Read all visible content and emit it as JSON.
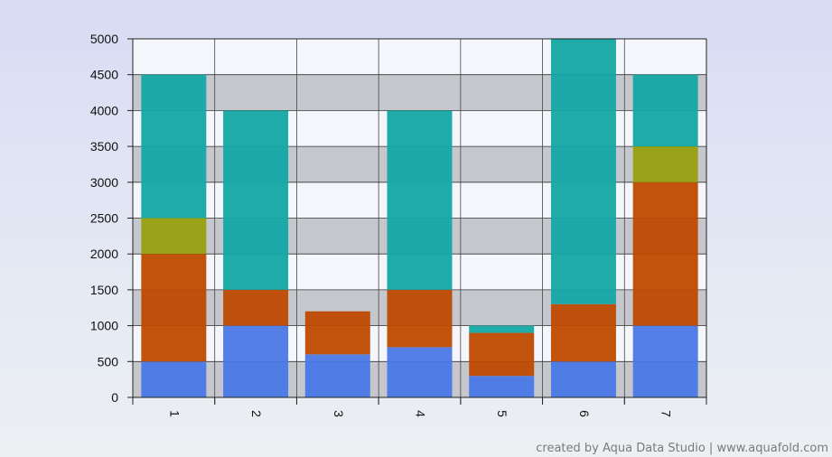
{
  "chart_data": {
    "type": "bar",
    "stacked": true,
    "categories": [
      "1",
      "2",
      "3",
      "4",
      "5",
      "6",
      "7"
    ],
    "series": [
      {
        "color": "#4a78e6",
        "values": [
          500,
          1000,
          600,
          700,
          300,
          500,
          1000
        ]
      },
      {
        "color": "#bf4a00",
        "values": [
          1500,
          500,
          600,
          800,
          600,
          800,
          2000
        ]
      },
      {
        "color": "#98a010",
        "values": [
          500,
          0,
          0,
          0,
          0,
          0,
          500
        ]
      },
      {
        "color": "#13a8a4",
        "values": [
          2000,
          2500,
          0,
          2500,
          100,
          3700,
          1000
        ]
      }
    ],
    "ylim": [
      0,
      5000
    ],
    "yticks": [
      "0",
      "500",
      "1000",
      "1500",
      "2000",
      "2500",
      "3000",
      "3500",
      "4000",
      "4500",
      "5000"
    ],
    "grid": true,
    "band_colors": [
      "#c6c7cc",
      "#f5f6fc"
    ],
    "xlabel": "",
    "ylabel": "",
    "title": ""
  },
  "watermark": "created by Aqua Data Studio | www.aquafold.com"
}
